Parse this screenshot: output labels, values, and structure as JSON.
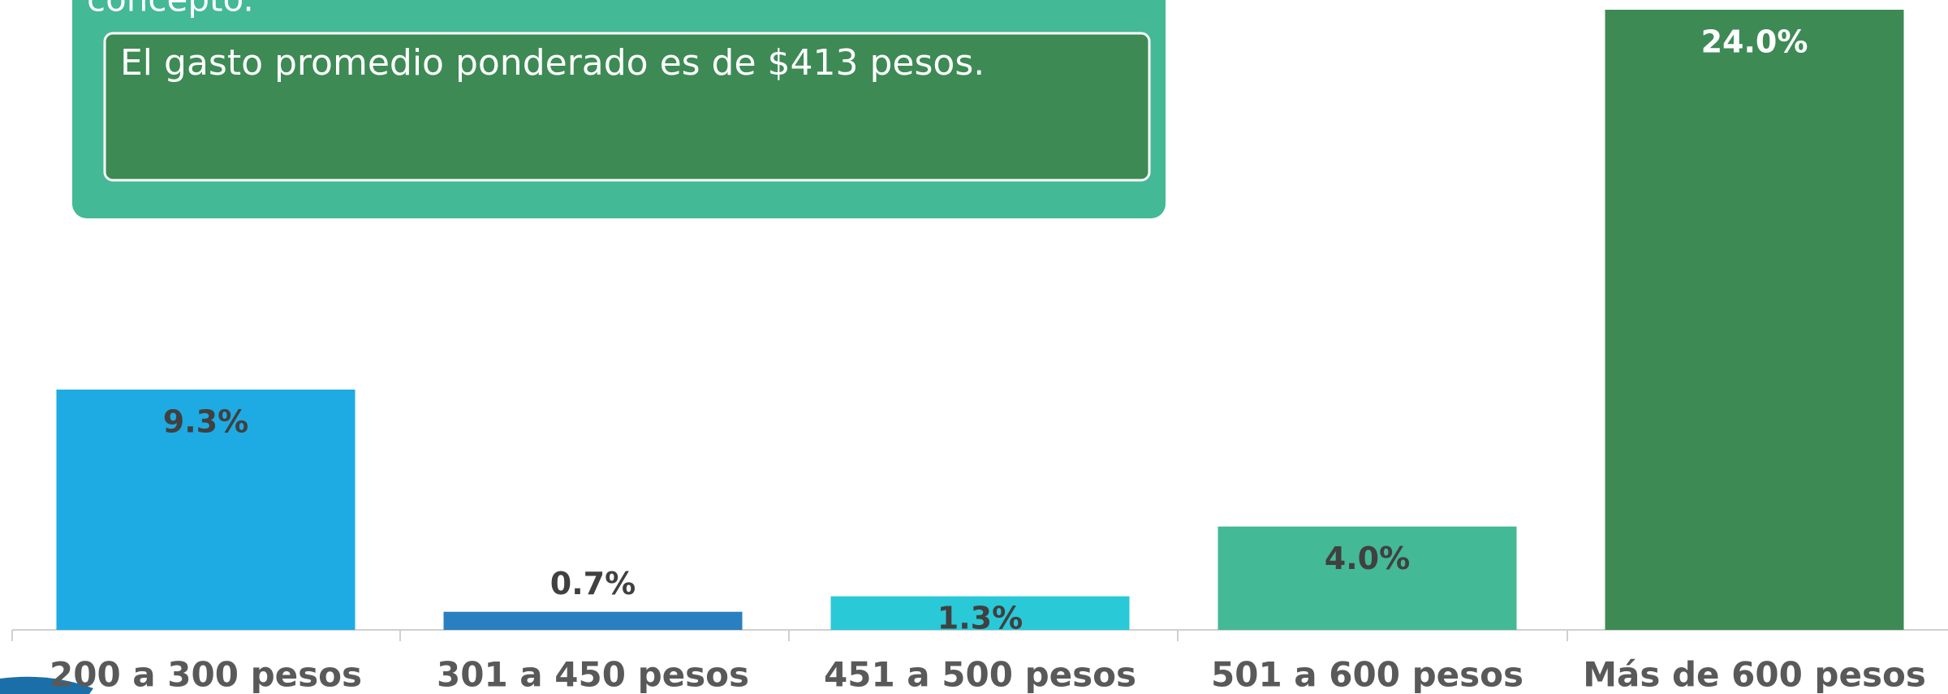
{
  "chart_data": {
    "type": "bar",
    "annotations": [
      "concepto.",
      "El gasto promedio ponderado es de $413 pesos."
    ],
    "categories": [
      "200 a 300 pesos",
      "301 a 450 pesos",
      "451 a 500 pesos",
      "501 a 600 pesos",
      "Más de 600 pesos"
    ],
    "values": [
      9.3,
      0.7,
      1.3,
      4.0,
      24.0
    ],
    "value_labels": [
      "9.3%",
      "0.7%",
      "1.3%",
      "4.0%",
      "24.0%"
    ],
    "colors": [
      "#1eabe3",
      "#2a7fc1",
      "#29c9d8",
      "#43b995",
      "#3d8a55"
    ]
  }
}
